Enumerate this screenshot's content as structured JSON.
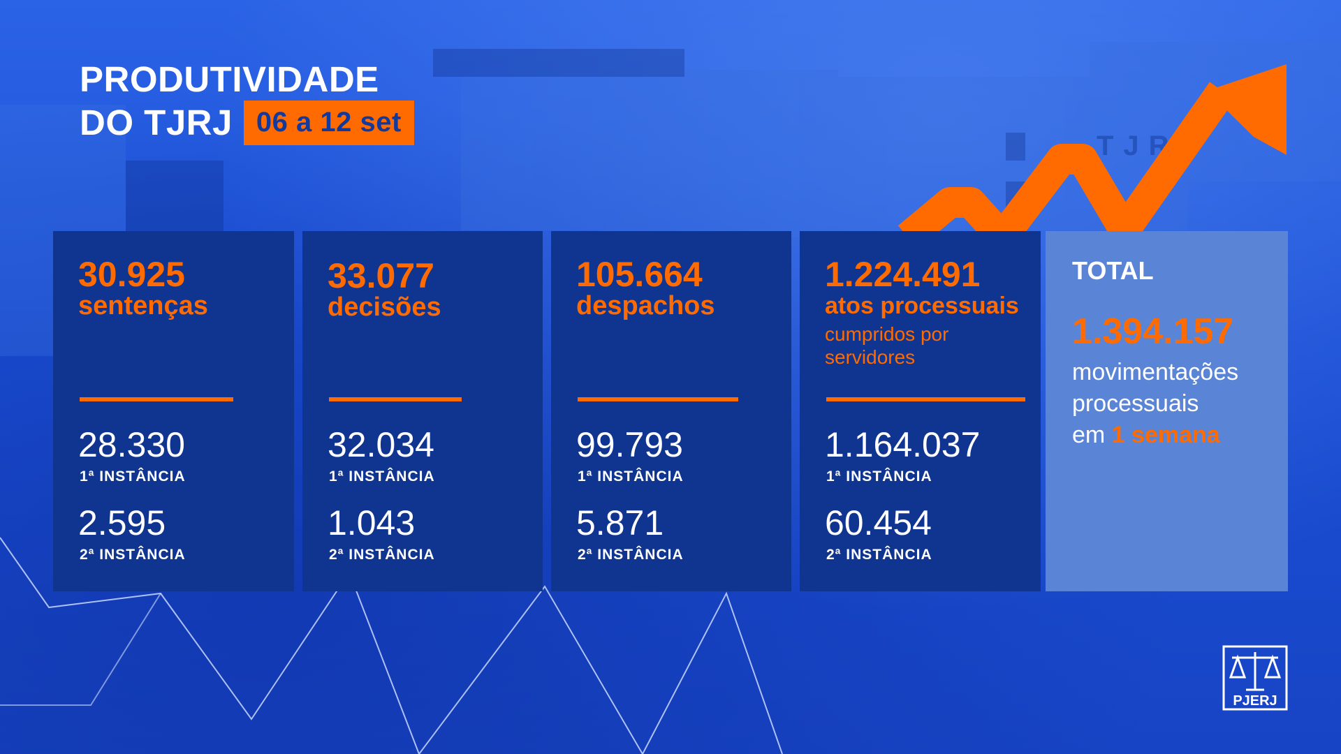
{
  "header": {
    "title_line1": "PRODUTIVIDADE",
    "title_line2": "DO TJRJ",
    "date_range": "06 a 12 set"
  },
  "cards": [
    {
      "value": "30.925",
      "label": "sentenças",
      "sub": "",
      "first_value": "28.330",
      "first_label": "1ª INSTÂNCIA",
      "second_value": "2.595",
      "second_label": "2ª INSTÂNCIA"
    },
    {
      "value": "33.077",
      "label": "decisões",
      "sub": "",
      "first_value": "32.034",
      "first_label": "1ª INSTÂNCIA",
      "second_value": "1.043",
      "second_label": "2ª INSTÂNCIA"
    },
    {
      "value": "105.664",
      "label": "despachos",
      "sub": "",
      "first_value": "99.793",
      "first_label": "1ª INSTÂNCIA",
      "second_value": "5.871",
      "second_label": "2ª INSTÂNCIA"
    },
    {
      "value": "1.224.491",
      "label": "atos processuais",
      "sub": "cumpridos por servidores",
      "first_value": "1.164.037",
      "first_label": "1ª INSTÂNCIA",
      "second_value": "60.454",
      "second_label": "2ª INSTÂNCIA"
    }
  ],
  "total": {
    "label": "TOTAL",
    "value": "1.394.157",
    "desc_line1": "movimentações",
    "desc_line2": "processuais",
    "desc_prefix": "em",
    "desc_highlight": "1 semana"
  },
  "background_sign": "TJRJ",
  "logo": {
    "text": "PJERJ",
    "icon": "scales-of-justice-icon"
  },
  "colors": {
    "accent": "#ff6b00",
    "card_bg": "#0f3591",
    "total_bg": "#5a84d6",
    "background": "#1a4fd0"
  }
}
